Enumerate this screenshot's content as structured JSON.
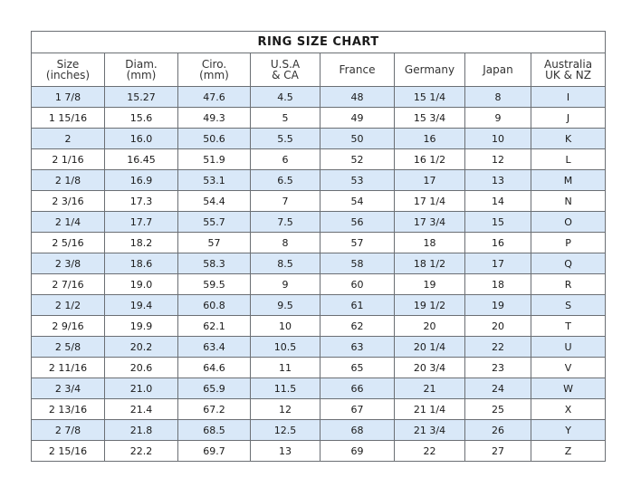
{
  "title": "RING SIZE CHART",
  "headers": [
    [
      "Size",
      "(inches)"
    ],
    [
      "Diam.",
      "(mm)"
    ],
    [
      "Ciro.",
      "(mm)"
    ],
    [
      "U.S.A",
      "& CA"
    ],
    [
      "France",
      ""
    ],
    [
      "Germany",
      ""
    ],
    [
      "Japan",
      ""
    ],
    [
      "Australia",
      "UK & NZ"
    ]
  ],
  "rows": [
    [
      "1 7/8",
      "15.27",
      "47.6",
      "4.5",
      "48",
      "15 1/4",
      "8",
      "I"
    ],
    [
      "1 15/16",
      "15.6",
      "49.3",
      "5",
      "49",
      "15 3/4",
      "9",
      "J"
    ],
    [
      "2",
      "16.0",
      "50.6",
      "5.5",
      "50",
      "16",
      "10",
      "K"
    ],
    [
      "2 1/16",
      "16.45",
      "51.9",
      "6",
      "52",
      "16 1/2",
      "12",
      "L"
    ],
    [
      "2 1/8",
      "16.9",
      "53.1",
      "6.5",
      "53",
      "17",
      "13",
      "M"
    ],
    [
      "2 3/16",
      "17.3",
      "54.4",
      "7",
      "54",
      "17 1/4",
      "14",
      "N"
    ],
    [
      "2 1/4",
      "17.7",
      "55.7",
      "7.5",
      "56",
      "17 3/4",
      "15",
      "O"
    ],
    [
      "2 5/16",
      "18.2",
      "57",
      "8",
      "57",
      "18",
      "16",
      "P"
    ],
    [
      "2 3/8",
      "18.6",
      "58.3",
      "8.5",
      "58",
      "18 1/2",
      "17",
      "Q"
    ],
    [
      "2 7/16",
      "19.0",
      "59.5",
      "9",
      "60",
      "19",
      "18",
      "R"
    ],
    [
      "2 1/2",
      "19.4",
      "60.8",
      "9.5",
      "61",
      "19 1/2",
      "19",
      "S"
    ],
    [
      "2 9/16",
      "19.9",
      "62.1",
      "10",
      "62",
      "20",
      "20",
      "T"
    ],
    [
      "2 5/8",
      "20.2",
      "63.4",
      "10.5",
      "63",
      "20 1/4",
      "22",
      "U"
    ],
    [
      "2 11/16",
      "20.6",
      "64.6",
      "11",
      "65",
      "20 3/4",
      "23",
      "V"
    ],
    [
      "2 3/4",
      "21.0",
      "65.9",
      "11.5",
      "66",
      "21",
      "24",
      "W"
    ],
    [
      "2 13/16",
      "21.4",
      "67.2",
      "12",
      "67",
      "21 1/4",
      "25",
      "X"
    ],
    [
      "2 7/8",
      "21.8",
      "68.5",
      "12.5",
      "68",
      "21 3/4",
      "26",
      "Y"
    ],
    [
      "2 15/16",
      "22.2",
      "69.7",
      "13",
      "69",
      "22",
      "27",
      "Z"
    ]
  ],
  "colors": {
    "shade": "#d9e8f8",
    "border": "#6b6f74"
  }
}
